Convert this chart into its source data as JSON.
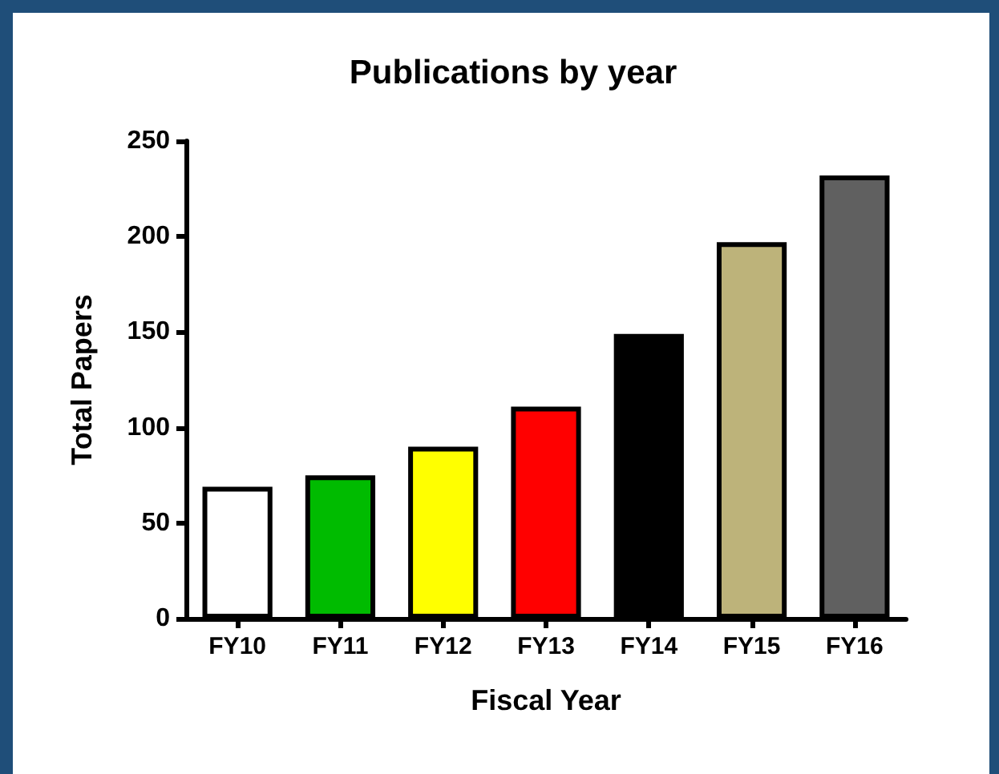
{
  "chart_data": {
    "type": "bar",
    "title": "Publications by year",
    "xlabel": "Fiscal Year",
    "ylabel": "Total Papers",
    "categories": [
      "FY10",
      "FY11",
      "FY12",
      "FY13",
      "FY14",
      "FY15",
      "FY16"
    ],
    "values": [
      69,
      75,
      90,
      111,
      149,
      197,
      232
    ],
    "colors": [
      "#ffffff",
      "#00bb00",
      "#ffff00",
      "#ff0000",
      "#000000",
      "#bdb37a",
      "#606060"
    ],
    "ylim": [
      0,
      250
    ],
    "yticks": [
      0,
      50,
      100,
      150,
      200,
      250
    ],
    "grid": false
  }
}
